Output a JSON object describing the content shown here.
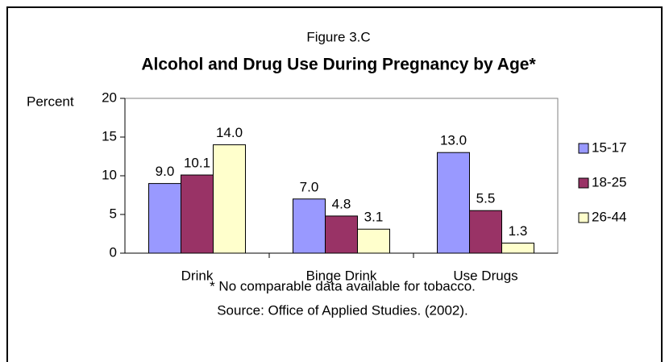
{
  "chart_data": {
    "type": "bar",
    "figure_label": "Figure 3.C",
    "title": "Alcohol and Drug Use During Pregnancy by Age*",
    "y_label": "Percent",
    "categories": [
      "Drink",
      "Binge Drink",
      "Use Drugs"
    ],
    "series": [
      {
        "name": "15-17",
        "color": "#9999ff",
        "values": [
          9.0,
          7.0,
          13.0
        ],
        "value_labels": [
          "9.0",
          "7.0",
          "13.0"
        ]
      },
      {
        "name": "18-25",
        "color": "#993366",
        "values": [
          10.1,
          4.8,
          5.5
        ],
        "value_labels": [
          "10.1",
          "4.8",
          "5.5"
        ]
      },
      {
        "name": "26-44",
        "color": "#ffffcc",
        "values": [
          14.0,
          3.1,
          1.3
        ],
        "value_labels": [
          "14.0",
          "3.1",
          "1.3"
        ]
      }
    ],
    "ylim": [
      0,
      20
    ],
    "yticks": [
      0,
      5,
      10,
      15,
      20
    ],
    "legend": "right",
    "notes": [
      "* No comparable data available for tobacco.",
      "Source: Office of Applied Studies. (2002)."
    ]
  }
}
